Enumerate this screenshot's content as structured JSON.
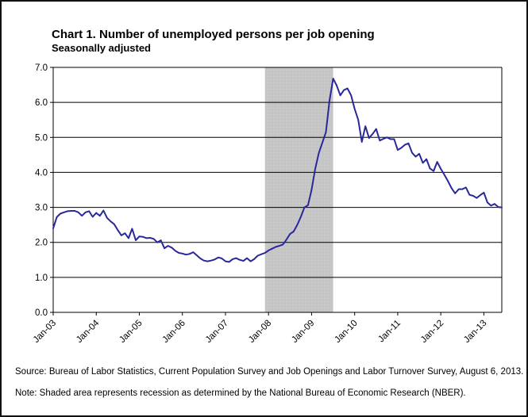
{
  "header": {
    "title": "Chart 1. Number of unemployed persons per job opening",
    "subtitle": "Seasonally adjusted"
  },
  "footer": {
    "source": "Source: Bureau of Labor Statistics, Current Population Survey and Job Openings and Labor Turnover Survey, August 6, 2013.",
    "note": "Note: Shaded area represents recession as determined by the National Bureau of Economic Research (NBER)."
  },
  "chart_data": {
    "type": "line",
    "title": "Chart 1. Number of unemployed persons per job opening",
    "subtitle": "Seasonally adjusted",
    "x_start": "Jan-03",
    "x_end": "Jun-13",
    "x_tick_labels": [
      "Jan-03",
      "Jan-04",
      "Jan-05",
      "Jan-06",
      "Jan-07",
      "Jan-08",
      "Jan-09",
      "Jan-10",
      "Jan-11",
      "Jan-12",
      "Jan-13"
    ],
    "y_tick_labels": [
      "0.0",
      "1.0",
      "2.0",
      "3.0",
      "4.0",
      "5.0",
      "6.0",
      "7.0"
    ],
    "ylim": [
      0,
      7
    ],
    "grid": "horizontal",
    "legend_position": "none",
    "colors": {
      "line": "#28289b",
      "recession_band": "#c5c5c5",
      "recession_band_dots": "#d3d3d3",
      "grid": "#000000",
      "text": "#000000"
    },
    "shaded_region": {
      "label": "NBER recession",
      "from": "Dec-07",
      "to": "Jun-09",
      "start_month_index": 59,
      "end_month_index": 78
    },
    "series": [
      {
        "name": "Unemployed persons per job opening (seasonally adjusted)",
        "start": "Jan-03",
        "frequency": "monthly",
        "values": [
          2.4,
          2.72,
          2.82,
          2.86,
          2.89,
          2.9,
          2.9,
          2.86,
          2.76,
          2.86,
          2.89,
          2.73,
          2.84,
          2.76,
          2.91,
          2.7,
          2.6,
          2.52,
          2.35,
          2.2,
          2.26,
          2.12,
          2.39,
          2.06,
          2.17,
          2.16,
          2.12,
          2.13,
          2.1,
          2.0,
          2.06,
          1.83,
          1.9,
          1.85,
          1.76,
          1.7,
          1.68,
          1.65,
          1.67,
          1.72,
          1.63,
          1.54,
          1.48,
          1.46,
          1.48,
          1.51,
          1.57,
          1.54,
          1.46,
          1.44,
          1.52,
          1.55,
          1.5,
          1.47,
          1.55,
          1.46,
          1.52,
          1.62,
          1.66,
          1.7,
          1.77,
          1.82,
          1.87,
          1.9,
          1.94,
          2.08,
          2.24,
          2.31,
          2.5,
          2.73,
          3.0,
          3.06,
          3.5,
          4.1,
          4.55,
          4.85,
          5.15,
          6.05,
          6.68,
          6.48,
          6.2,
          6.35,
          6.4,
          6.2,
          5.81,
          5.5,
          4.87,
          5.32,
          4.98,
          5.1,
          5.24,
          4.91,
          4.96,
          5.0,
          4.95,
          4.95,
          4.64,
          4.7,
          4.79,
          4.83,
          4.56,
          4.45,
          4.53,
          4.27,
          4.38,
          4.11,
          4.04,
          4.3,
          4.1,
          3.93,
          3.75,
          3.55,
          3.4,
          3.52,
          3.52,
          3.57,
          3.36,
          3.33,
          3.27,
          3.35,
          3.42,
          3.14,
          3.05,
          3.1,
          3.01,
          3.0
        ]
      }
    ]
  }
}
